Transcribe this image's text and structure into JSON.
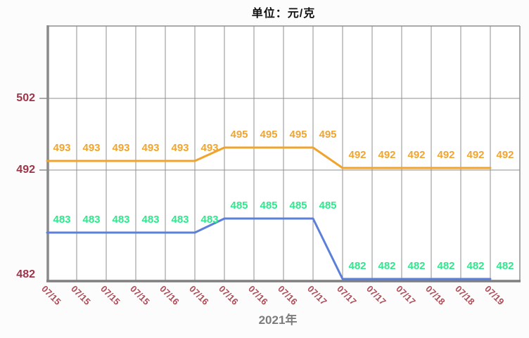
{
  "header": {
    "title": "单位：元/克"
  },
  "footer": {
    "year_label": "2021年"
  },
  "chart_data": {
    "type": "line",
    "title": "单位：元/克",
    "xlabel": "2021年",
    "x": [
      "07/15",
      "07/15",
      "07/15",
      "07/15",
      "07/16",
      "07/16",
      "07/16",
      "07/16",
      "07/16",
      "07/17",
      "07/17",
      "07/17",
      "07/17",
      "07/18",
      "07/18",
      "07/19"
    ],
    "series": [
      {
        "name": "series-1",
        "color": "#F0A42C",
        "label_color": "#F1A52F",
        "values": [
          493,
          493,
          493,
          493,
          493,
          493,
          495,
          495,
          495,
          495,
          492,
          492,
          492,
          492,
          492,
          492
        ]
      },
      {
        "name": "series-2",
        "color": "#5C80D9",
        "label_color": "#2EE98C",
        "values": [
          483,
          483,
          483,
          483,
          483,
          483,
          485,
          485,
          485,
          485,
          482,
          482,
          482,
          482,
          482,
          482
        ]
      }
    ],
    "y_ticks": [
      "502",
      "492",
      "482"
    ],
    "ylim": [
      482,
      502
    ],
    "grid": true,
    "legend": "none",
    "colors": {
      "y_tick_label": "#9D3447",
      "x_tick_label": "#AC4E59",
      "grid_line": "#8F8F8F",
      "axis_line": "#7F7F7F",
      "plot_background": "#FFFFFF"
    }
  }
}
